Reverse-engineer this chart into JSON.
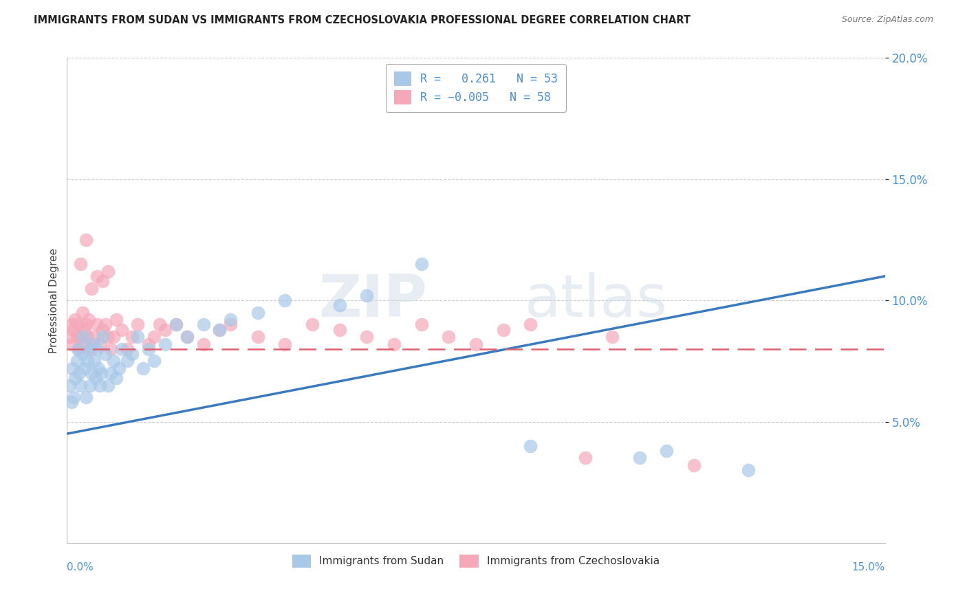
{
  "title": "IMMIGRANTS FROM SUDAN VS IMMIGRANTS FROM CZECHOSLOVAKIA PROFESSIONAL DEGREE CORRELATION CHART",
  "source": "Source: ZipAtlas.com",
  "ylabel": "Professional Degree",
  "xlim": [
    0.0,
    15.0
  ],
  "ylim": [
    0.0,
    20.0
  ],
  "yticks": [
    5.0,
    10.0,
    15.0,
    20.0
  ],
  "ytick_labels": [
    "5.0%",
    "10.0%",
    "15.0%",
    "20.0%"
  ],
  "color_sudan": "#a8c8e8",
  "color_czech": "#f4a8b8",
  "color_sudan_line": "#3a7abf",
  "color_czech_line": "#e06070",
  "legend_label_sudan": "Immigrants from Sudan",
  "legend_label_czech": "Immigrants from Czechoslovakia",
  "watermark_zip": "ZIP",
  "watermark_atlas": "atlas",
  "sudan_line_y0": 4.5,
  "sudan_line_y1": 11.0,
  "czech_line_y": 8.0,
  "sudan_scatter_x": [
    0.05,
    0.08,
    0.1,
    0.12,
    0.15,
    0.18,
    0.2,
    0.22,
    0.25,
    0.28,
    0.3,
    0.32,
    0.35,
    0.38,
    0.4,
    0.42,
    0.45,
    0.48,
    0.5,
    0.52,
    0.55,
    0.58,
    0.6,
    0.62,
    0.65,
    0.7,
    0.75,
    0.8,
    0.85,
    0.9,
    0.95,
    1.0,
    1.1,
    1.2,
    1.3,
    1.4,
    1.5,
    1.6,
    1.8,
    2.0,
    2.2,
    2.5,
    2.8,
    3.0,
    3.5,
    4.0,
    5.0,
    5.5,
    6.5,
    8.5,
    10.5,
    11.0,
    12.5
  ],
  "sudan_scatter_y": [
    6.5,
    5.8,
    7.2,
    6.0,
    6.8,
    7.5,
    8.0,
    7.0,
    6.5,
    7.8,
    8.5,
    7.2,
    6.0,
    7.5,
    8.0,
    6.5,
    7.0,
    8.2,
    7.5,
    6.8,
    8.0,
    7.2,
    6.5,
    7.0,
    8.5,
    7.8,
    6.5,
    7.0,
    7.5,
    6.8,
    7.2,
    8.0,
    7.5,
    7.8,
    8.5,
    7.2,
    8.0,
    7.5,
    8.2,
    9.0,
    8.5,
    9.0,
    8.8,
    9.2,
    9.5,
    10.0,
    9.8,
    10.2,
    11.5,
    4.0,
    3.5,
    3.8,
    3.0
  ],
  "czech_scatter_x": [
    0.05,
    0.08,
    0.1,
    0.12,
    0.15,
    0.18,
    0.2,
    0.22,
    0.25,
    0.28,
    0.3,
    0.32,
    0.35,
    0.38,
    0.4,
    0.45,
    0.5,
    0.55,
    0.6,
    0.65,
    0.7,
    0.75,
    0.8,
    0.85,
    0.9,
    1.0,
    1.1,
    1.2,
    1.3,
    1.5,
    1.6,
    1.7,
    1.8,
    2.0,
    2.2,
    2.5,
    2.8,
    3.0,
    3.5,
    4.0,
    4.5,
    5.0,
    5.5,
    6.0,
    6.5,
    7.0,
    7.5,
    8.0,
    8.5,
    9.5,
    10.0,
    11.5,
    0.25,
    0.35,
    0.45,
    0.55,
    0.65,
    0.75
  ],
  "czech_scatter_y": [
    8.5,
    9.0,
    8.2,
    8.8,
    9.2,
    8.5,
    9.0,
    8.0,
    8.5,
    9.5,
    8.2,
    8.8,
    9.0,
    8.5,
    9.2,
    8.0,
    8.5,
    9.0,
    8.2,
    8.8,
    9.0,
    8.5,
    8.0,
    8.5,
    9.2,
    8.8,
    8.0,
    8.5,
    9.0,
    8.2,
    8.5,
    9.0,
    8.8,
    9.0,
    8.5,
    8.2,
    8.8,
    9.0,
    8.5,
    8.2,
    9.0,
    8.8,
    8.5,
    8.2,
    9.0,
    8.5,
    8.2,
    8.8,
    9.0,
    3.5,
    8.5,
    3.2,
    11.5,
    12.5,
    10.5,
    11.0,
    10.8,
    11.2
  ]
}
